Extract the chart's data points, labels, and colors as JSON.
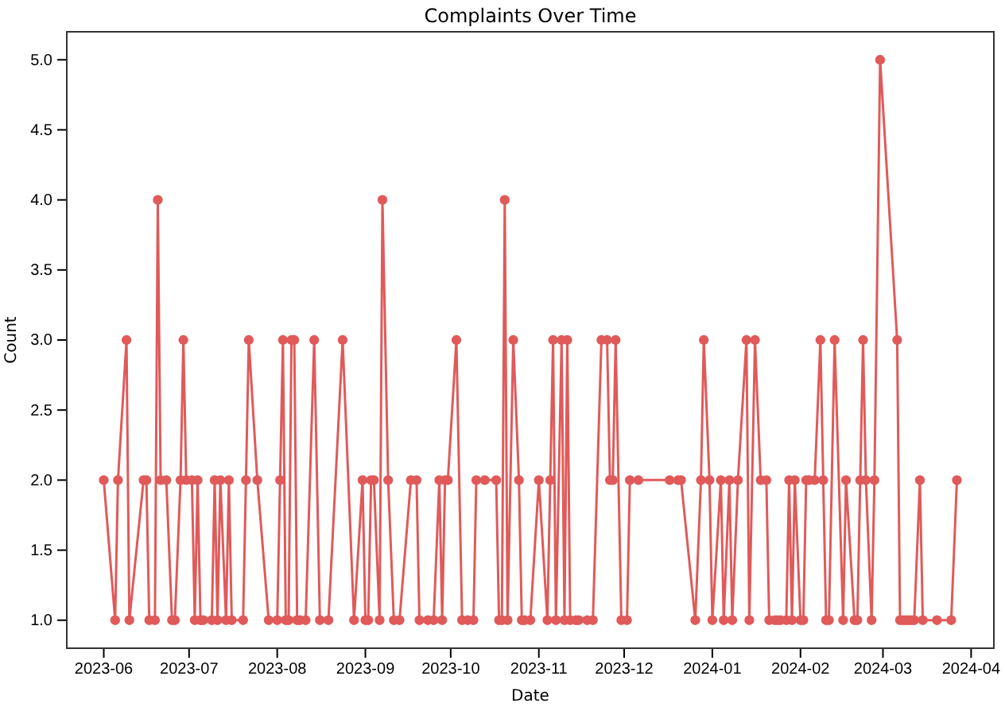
{
  "chart_data": {
    "type": "line",
    "title": "Complaints Over Time",
    "xlabel": "Date",
    "ylabel": "Count",
    "marker": "circle",
    "line_style": "solid",
    "grid": false,
    "xlim": [
      "2023-05-19",
      "2024-04-09"
    ],
    "ylim": [
      0.8,
      5.2
    ],
    "xticks": [
      {
        "value": "2023-06-01",
        "label": "2023-06"
      },
      {
        "value": "2023-07-01",
        "label": "2023-07"
      },
      {
        "value": "2023-08-01",
        "label": "2023-08"
      },
      {
        "value": "2023-09-01",
        "label": "2023-09"
      },
      {
        "value": "2023-10-01",
        "label": "2023-10"
      },
      {
        "value": "2023-11-01",
        "label": "2023-11"
      },
      {
        "value": "2023-12-01",
        "label": "2023-12"
      },
      {
        "value": "2024-01-01",
        "label": "2024-01"
      },
      {
        "value": "2024-02-01",
        "label": "2024-02"
      },
      {
        "value": "2024-03-01",
        "label": "2024-03"
      },
      {
        "value": "2024-04-01",
        "label": "2024-04"
      }
    ],
    "yticks": [
      {
        "value": 1,
        "label": "1.0"
      },
      {
        "value": 1.5,
        "label": "1.5"
      },
      {
        "value": 2,
        "label": "2.0"
      },
      {
        "value": 2.5,
        "label": "2.5"
      },
      {
        "value": 3,
        "label": "3.0"
      },
      {
        "value": 3.5,
        "label": "3.5"
      },
      {
        "value": 4,
        "label": "4.0"
      },
      {
        "value": 4.5,
        "label": "4.5"
      },
      {
        "value": 5,
        "label": "5.0"
      }
    ],
    "x": [
      "2023-06-01",
      "2023-06-05",
      "2023-06-06",
      "2023-06-09",
      "2023-06-10",
      "2023-06-15",
      "2023-06-16",
      "2023-06-17",
      "2023-06-19",
      "2023-06-20",
      "2023-06-21",
      "2023-06-23",
      "2023-06-25",
      "2023-06-26",
      "2023-06-28",
      "2023-06-29",
      "2023-06-30",
      "2023-07-02",
      "2023-07-03",
      "2023-07-04",
      "2023-07-05",
      "2023-07-06",
      "2023-07-09",
      "2023-07-10",
      "2023-07-11",
      "2023-07-12",
      "2023-07-14",
      "2023-07-15",
      "2023-07-16",
      "2023-07-20",
      "2023-07-21",
      "2023-07-22",
      "2023-07-25",
      "2023-07-29",
      "2023-08-01",
      "2023-08-02",
      "2023-08-03",
      "2023-08-04",
      "2023-08-05",
      "2023-08-06",
      "2023-08-07",
      "2023-08-08",
      "2023-08-09",
      "2023-08-11",
      "2023-08-14",
      "2023-08-16",
      "2023-08-19",
      "2023-08-24",
      "2023-08-28",
      "2023-08-31",
      "2023-09-01",
      "2023-09-02",
      "2023-09-03",
      "2023-09-04",
      "2023-09-06",
      "2023-09-07",
      "2023-09-09",
      "2023-09-11",
      "2023-09-13",
      "2023-09-17",
      "2023-09-19",
      "2023-09-20",
      "2023-09-23",
      "2023-09-25",
      "2023-09-27",
      "2023-09-28",
      "2023-09-29",
      "2023-09-30",
      "2023-10-03",
      "2023-10-05",
      "2023-10-07",
      "2023-10-09",
      "2023-10-10",
      "2023-10-13",
      "2023-10-17",
      "2023-10-18",
      "2023-10-19",
      "2023-10-20",
      "2023-10-21",
      "2023-10-23",
      "2023-10-25",
      "2023-10-26",
      "2023-10-27",
      "2023-10-29",
      "2023-11-01",
      "2023-11-04",
      "2023-11-05",
      "2023-11-06",
      "2023-11-07",
      "2023-11-09",
      "2023-11-10",
      "2023-11-11",
      "2023-11-12",
      "2023-11-14",
      "2023-11-15",
      "2023-11-18",
      "2023-11-20",
      "2023-11-23",
      "2023-11-25",
      "2023-11-26",
      "2023-11-27",
      "2023-11-28",
      "2023-11-30",
      "2023-12-02",
      "2023-12-03",
      "2023-12-06",
      "2023-12-17",
      "2023-12-20",
      "2023-12-21",
      "2023-12-26",
      "2023-12-28",
      "2023-12-29",
      "2023-12-31",
      "2024-01-01",
      "2024-01-04",
      "2024-01-05",
      "2024-01-07",
      "2024-01-08",
      "2024-01-10",
      "2024-01-13",
      "2024-01-14",
      "2024-01-16",
      "2024-01-18",
      "2024-01-20",
      "2024-01-21",
      "2024-01-23",
      "2024-01-24",
      "2024-01-25",
      "2024-01-27",
      "2024-01-28",
      "2024-01-29",
      "2024-01-30",
      "2024-02-01",
      "2024-02-02",
      "2024-02-03",
      "2024-02-04",
      "2024-02-06",
      "2024-02-08",
      "2024-02-09",
      "2024-02-10",
      "2024-02-11",
      "2024-02-13",
      "2024-02-16",
      "2024-02-17",
      "2024-02-20",
      "2024-02-21",
      "2024-02-22",
      "2024-02-23",
      "2024-02-24",
      "2024-02-26",
      "2024-02-27",
      "2024-02-29",
      "2024-03-06",
      "2024-03-07",
      "2024-03-08",
      "2024-03-09",
      "2024-03-10",
      "2024-03-11",
      "2024-03-12",
      "2024-03-14",
      "2024-03-15",
      "2024-03-20",
      "2024-03-25",
      "2024-03-27"
    ],
    "series": [
      {
        "color": "#e05a5a",
        "values": [
          2,
          1,
          2,
          3,
          1,
          2,
          2,
          1,
          1,
          4,
          2,
          2,
          1,
          1,
          2,
          3,
          2,
          2,
          1,
          2,
          1,
          1,
          1,
          2,
          1,
          2,
          1,
          2,
          1,
          1,
          2,
          3,
          2,
          1,
          1,
          2,
          3,
          1,
          1,
          3,
          3,
          1,
          1,
          1,
          3,
          1,
          1,
          3,
          1,
          2,
          1,
          1,
          2,
          2,
          1,
          4,
          2,
          1,
          1,
          2,
          2,
          1,
          1,
          1,
          2,
          1,
          2,
          2,
          3,
          1,
          1,
          1,
          2,
          2,
          2,
          1,
          1,
          4,
          1,
          3,
          2,
          1,
          1,
          1,
          2,
          1,
          2,
          3,
          1,
          3,
          1,
          3,
          1,
          1,
          1,
          1,
          1,
          3,
          3,
          2,
          2,
          3,
          1,
          1,
          2,
          2,
          2,
          2,
          2,
          1,
          2,
          3,
          2,
          1,
          2,
          1,
          2,
          1,
          2,
          3,
          1,
          3,
          2,
          2,
          1,
          1,
          1,
          1,
          1,
          2,
          1,
          2,
          1,
          1,
          2,
          2,
          2,
          3,
          2,
          1,
          1,
          3,
          1,
          2,
          1,
          1,
          2,
          3,
          2,
          1,
          2,
          5,
          3,
          1,
          1,
          1,
          1,
          1,
          1,
          2,
          1,
          1,
          1,
          2
        ]
      }
    ]
  }
}
